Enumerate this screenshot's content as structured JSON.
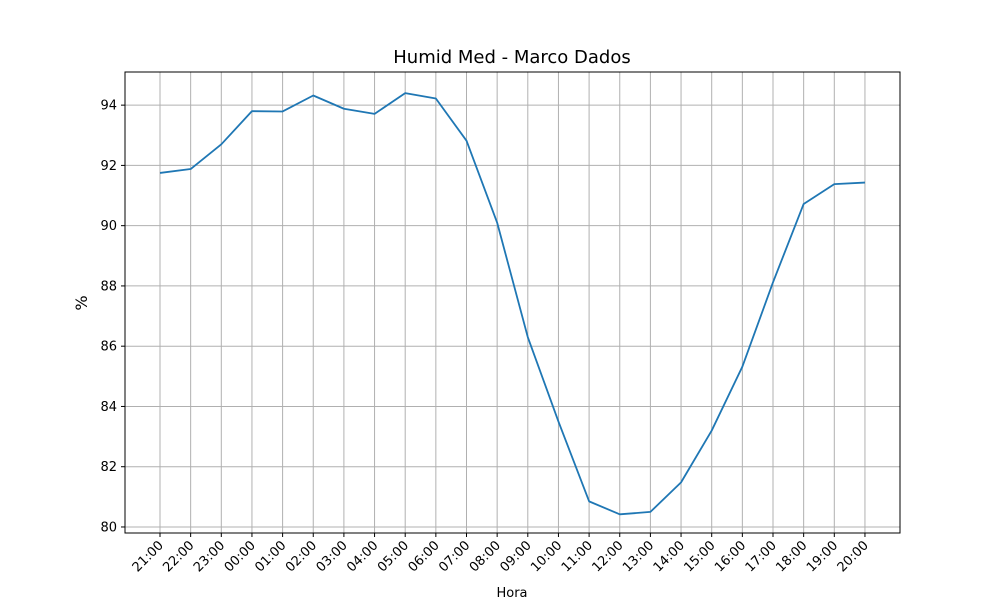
{
  "chart_data": {
    "type": "line",
    "title": "Humid Med - Marco Dados",
    "xlabel": "Hora",
    "ylabel": "%",
    "categories": [
      "21:00",
      "22:00",
      "23:00",
      "00:00",
      "01:00",
      "02:00",
      "03:00",
      "04:00",
      "05:00",
      "06:00",
      "07:00",
      "08:00",
      "09:00",
      "10:00",
      "11:00",
      "12:00",
      "13:00",
      "14:00",
      "15:00",
      "16:00",
      "17:00",
      "18:00",
      "19:00",
      "20:00"
    ],
    "x_tick_labels": [
      "21:00",
      "22:00",
      "23:00",
      "00:00",
      "01:00",
      "02:00",
      "03:00",
      "04:00",
      "05:00",
      "06:00",
      "07:00",
      "08:00",
      "09:00",
      "10:00",
      "11:00",
      "12:00",
      "13:00",
      "14:00",
      "15:00",
      "16:00",
      "17:00",
      "18:00",
      "19:00",
      "20:00"
    ],
    "series": [
      {
        "values": [
          91.75,
          91.88,
          92.7,
          93.8,
          93.79,
          94.32,
          93.88,
          93.71,
          94.4,
          94.22,
          92.82,
          90.1,
          86.3,
          83.5,
          80.85,
          80.42,
          80.5,
          81.48,
          83.2,
          85.32,
          88.12,
          90.72,
          91.38,
          91.43
        ],
        "color": "#1f77b4"
      }
    ],
    "ylim": [
      79.8,
      95.1
    ],
    "y_ticks": [
      80,
      82,
      84,
      86,
      88,
      90,
      92,
      94
    ],
    "grid": true,
    "legend": "none"
  }
}
